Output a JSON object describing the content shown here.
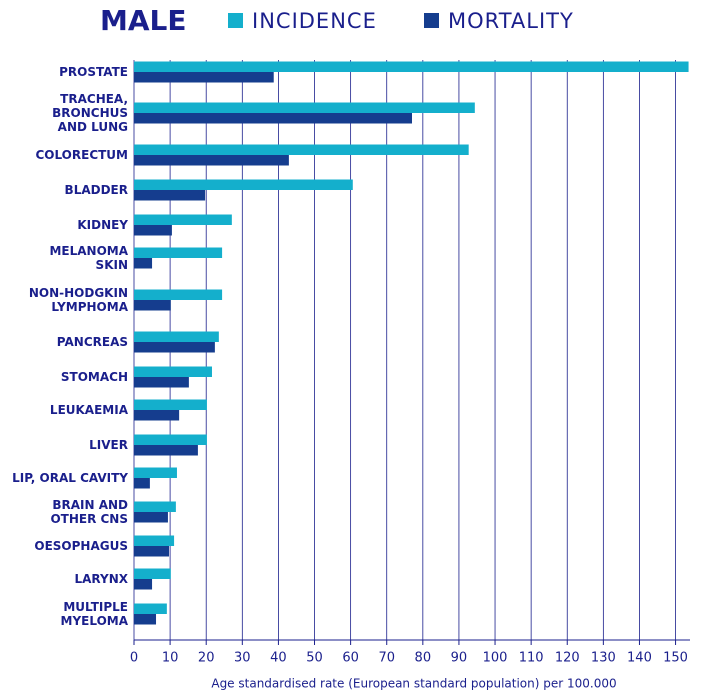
{
  "chart_data": {
    "type": "hbar",
    "title": "MALE",
    "categories": [
      "PROSTATE",
      "TRACHEA,\nBRONCHUS\nAND LUNG",
      "COLORECTUM",
      "BLADDER",
      "KIDNEY",
      "MELANOMA\nSKIN",
      "NON-HODGKIN\nLYMPHOMA",
      "PANCREAS",
      "STOMACH",
      "LEUKAEMIA",
      "LIVER",
      "LIP, ORAL CAVITY",
      "BRAIN AND\nOTHER CNS",
      "OESOPHAGUS",
      "LARYNX",
      "MULTIPLE\nMYELOMA"
    ],
    "series": [
      {
        "name": "INCIDENCE",
        "color": "#14afcc",
        "values": [
          153.6,
          94.4,
          92.7,
          60.6,
          27.1,
          24.4,
          24.4,
          23.5,
          21.6,
          20.2,
          20.2,
          11.9,
          11.6,
          11.1,
          10.2,
          9.1
        ]
      },
      {
        "name": "MORTALITY",
        "color": "#153d8e",
        "values": [
          38.7,
          77,
          42.9,
          19.7,
          10.5,
          5,
          10.2,
          22.4,
          15.2,
          12.5,
          17.7,
          4.4,
          9.4,
          9.7,
          5,
          6.1
        ]
      }
    ],
    "xlabel": "Age standardised rate (European standard population) per 100.000",
    "xlim": [
      0,
      154
    ],
    "xticks": [
      0,
      10,
      20,
      30,
      40,
      50,
      60,
      70,
      80,
      90,
      100,
      110,
      120,
      130,
      140,
      150
    ],
    "grid": true,
    "legend": "top"
  }
}
